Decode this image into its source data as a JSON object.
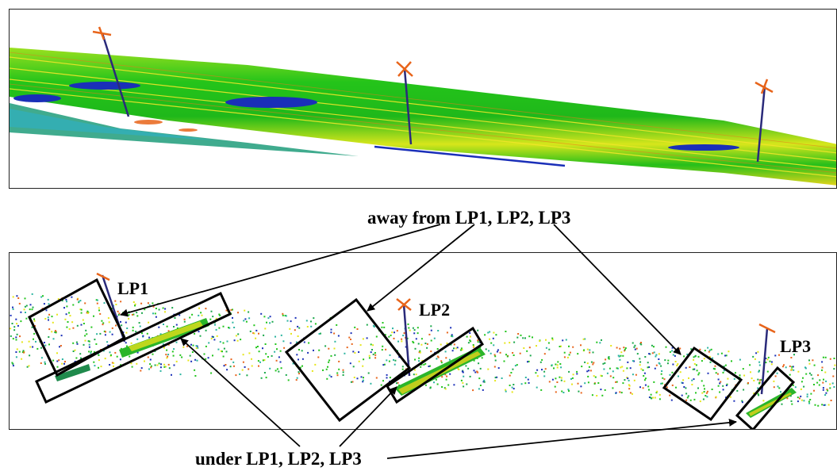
{
  "captions": {
    "away": "away from LP1, LP2, LP3",
    "under": "under LP1, LP2, LP3"
  },
  "labels": {
    "lp1": "LP1",
    "lp2": "LP2",
    "lp3": "LP3"
  },
  "colors": {
    "ground_green": "#22c51c",
    "ground_yellow": "#e6e61a",
    "low_blue": "#1a2fb8",
    "high_orange": "#e8641a",
    "frame": "#000000"
  }
}
